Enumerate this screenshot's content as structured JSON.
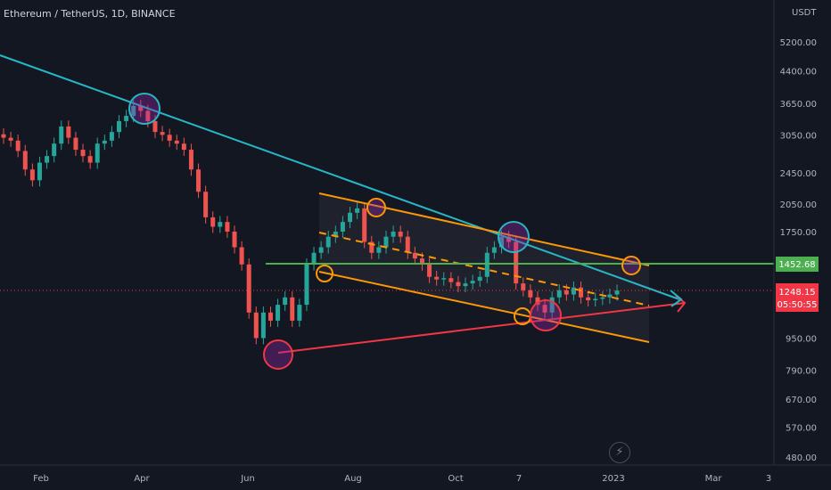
{
  "header": {
    "symbol_title": "Ethereum / TetherUS, 1D, BINANCE"
  },
  "colors": {
    "background": "#131722",
    "up_candle": "#26a69a",
    "down_candle": "#ef5350",
    "trendline_cyan": "#26b6c6",
    "channel_orange": "#ff9800",
    "support_green": "#4caf50",
    "support_red": "#f23645",
    "price_label_red": "#f23645"
  },
  "chart_data": {
    "type": "candlestick",
    "x_ticks": [
      "Feb",
      "Apr",
      "Jun",
      "Aug",
      "Oct",
      "7",
      "2023",
      "Mar",
      "3"
    ],
    "y_axis": {
      "unit": "USDT",
      "scale": "log",
      "ticks": [
        5200,
        4400,
        3650,
        3050,
        2450,
        2050,
        1750,
        950,
        790,
        670,
        570,
        480
      ]
    },
    "key_level": {
      "label": "1452.68",
      "value": 1452.68
    },
    "current_price": {
      "label": "1248.15",
      "value": 1248.15,
      "countdown": "05:50:55"
    },
    "candles_approx": [
      3000,
      2950,
      2780,
      2500,
      2350,
      2600,
      2700,
      2900,
      3200,
      3000,
      2800,
      2700,
      2600,
      2900,
      2950,
      3100,
      3300,
      3400,
      3600,
      3500,
      3300,
      3100,
      3050,
      2950,
      2900,
      2800,
      2500,
      2200,
      1900,
      1800,
      1850,
      1750,
      1600,
      1450,
      1100,
      950,
      1100,
      1050,
      1150,
      1200,
      1050,
      1150,
      1450,
      1550,
      1600,
      1700,
      1750,
      1850,
      1950,
      2000,
      1650,
      1550,
      1600,
      1700,
      1750,
      1700,
      1550,
      1500,
      1450,
      1350,
      1330,
      1340,
      1310,
      1280,
      1300,
      1320,
      1350,
      1550,
      1600,
      1700,
      1650,
      1300,
      1250,
      1200,
      1150,
      1100,
      1200,
      1250,
      1220,
      1270,
      1200,
      1180,
      1190,
      1200,
      1220,
      1248
    ],
    "grid": false,
    "annotations": [
      "descending cyan trendline from upper left toward ~2023 Feb",
      "orange descending channel with dashed midline and shaded fill",
      "green horizontal support/resistance at 1452.68",
      "red ascending support line from June low with arrow",
      "highlighted touch-point circles (cyan, orange, purple)"
    ]
  }
}
